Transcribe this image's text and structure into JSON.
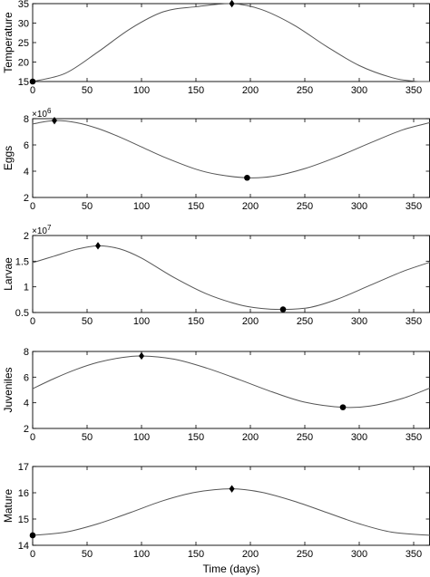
{
  "figure": {
    "xlabel": "Time (days)"
  },
  "chart_data": [
    {
      "type": "line",
      "ylabel": "Temperature",
      "multiplier": "",
      "xlim": [
        0,
        365
      ],
      "ylim": [
        15,
        35
      ],
      "xticks": [
        0,
        50,
        100,
        150,
        200,
        250,
        300,
        350
      ],
      "yticks": [
        15,
        20,
        25,
        30,
        35
      ],
      "series": [
        {
          "points": [
            [
              0,
              15
            ],
            [
              30,
              17.1
            ],
            [
              60,
              22.6
            ],
            [
              90,
              28.6
            ],
            [
              120,
              32.9
            ],
            [
              150,
              34.2
            ],
            [
              183,
              35
            ],
            [
              210,
              33.5
            ],
            [
              240,
              29.5
            ],
            [
              270,
              24
            ],
            [
              300,
              19.1
            ],
            [
              330,
              16
            ],
            [
              350,
              15.1
            ],
            [
              365,
              15
            ]
          ]
        }
      ],
      "markers": [
        {
          "shape": "circle",
          "x": 0,
          "y": 15
        },
        {
          "shape": "diamond",
          "x": 183,
          "y": 35
        }
      ]
    },
    {
      "type": "line",
      "ylabel": "Eggs",
      "multiplier": "×10^6",
      "xlim": [
        0,
        365
      ],
      "ylim": [
        2,
        8
      ],
      "xticks": [
        0,
        50,
        100,
        150,
        200,
        250,
        300,
        350
      ],
      "yticks": [
        2,
        4,
        6,
        8
      ],
      "series": [
        {
          "points": [
            [
              0,
              7.6
            ],
            [
              20,
              7.85
            ],
            [
              40,
              7.7
            ],
            [
              60,
              7.25
            ],
            [
              80,
              6.6
            ],
            [
              100,
              5.85
            ],
            [
              120,
              5.1
            ],
            [
              150,
              4.15
            ],
            [
              170,
              3.75
            ],
            [
              197,
              3.5
            ],
            [
              220,
              3.6
            ],
            [
              250,
              4.2
            ],
            [
              280,
              5.1
            ],
            [
              310,
              6.15
            ],
            [
              340,
              7.15
            ],
            [
              365,
              7.7
            ]
          ]
        }
      ],
      "markers": [
        {
          "shape": "diamond",
          "x": 20,
          "y": 7.85
        },
        {
          "shape": "circle",
          "x": 197,
          "y": 3.5
        }
      ]
    },
    {
      "type": "line",
      "ylabel": "Larvae",
      "multiplier": "×10^7",
      "xlim": [
        0,
        365
      ],
      "ylim": [
        0.5,
        2
      ],
      "xticks": [
        0,
        50,
        100,
        150,
        200,
        250,
        300,
        350
      ],
      "yticks": [
        0.5,
        1,
        1.5,
        2
      ],
      "series": [
        {
          "points": [
            [
              0,
              1.47
            ],
            [
              20,
              1.6
            ],
            [
              40,
              1.73
            ],
            [
              60,
              1.8
            ],
            [
              80,
              1.74
            ],
            [
              100,
              1.56
            ],
            [
              130,
              1.18
            ],
            [
              160,
              0.86
            ],
            [
              190,
              0.65
            ],
            [
              210,
              0.58
            ],
            [
              230,
              0.56
            ],
            [
              255,
              0.6
            ],
            [
              280,
              0.76
            ],
            [
              310,
              1.03
            ],
            [
              340,
              1.3
            ],
            [
              365,
              1.48
            ]
          ]
        }
      ],
      "markers": [
        {
          "shape": "diamond",
          "x": 60,
          "y": 1.8
        },
        {
          "shape": "circle",
          "x": 230,
          "y": 0.56
        }
      ]
    },
    {
      "type": "line",
      "ylabel": "Juveniles",
      "multiplier": "",
      "xlim": [
        0,
        365
      ],
      "ylim": [
        2,
        8
      ],
      "xticks": [
        0,
        50,
        100,
        150,
        200,
        250,
        300,
        350
      ],
      "yticks": [
        2,
        4,
        6,
        8
      ],
      "series": [
        {
          "points": [
            [
              0,
              5.1
            ],
            [
              20,
              5.9
            ],
            [
              40,
              6.6
            ],
            [
              60,
              7.15
            ],
            [
              80,
              7.5
            ],
            [
              100,
              7.65
            ],
            [
              130,
              7.4
            ],
            [
              160,
              6.7
            ],
            [
              190,
              5.8
            ],
            [
              220,
              4.85
            ],
            [
              250,
              4.05
            ],
            [
              285,
              3.65
            ],
            [
              310,
              3.75
            ],
            [
              340,
              4.35
            ],
            [
              365,
              5.15
            ]
          ]
        }
      ],
      "markers": [
        {
          "shape": "diamond",
          "x": 100,
          "y": 7.65
        },
        {
          "shape": "circle",
          "x": 285,
          "y": 3.65
        }
      ]
    },
    {
      "type": "line",
      "ylabel": "Mature",
      "multiplier": "",
      "xlim": [
        0,
        365
      ],
      "ylim": [
        14,
        17
      ],
      "xticks": [
        0,
        50,
        100,
        150,
        200,
        250,
        300,
        350
      ],
      "yticks": [
        14,
        15,
        16,
        17
      ],
      "series": [
        {
          "points": [
            [
              0,
              14.38
            ],
            [
              30,
              14.5
            ],
            [
              60,
              14.82
            ],
            [
              90,
              15.25
            ],
            [
              120,
              15.7
            ],
            [
              150,
              16.02
            ],
            [
              183,
              16.15
            ],
            [
              210,
              16.02
            ],
            [
              240,
              15.68
            ],
            [
              270,
              15.25
            ],
            [
              300,
              14.82
            ],
            [
              330,
              14.5
            ],
            [
              365,
              14.38
            ]
          ]
        }
      ],
      "markers": [
        {
          "shape": "circle",
          "x": 0,
          "y": 14.38
        },
        {
          "shape": "diamond",
          "x": 183,
          "y": 16.15
        }
      ]
    }
  ]
}
